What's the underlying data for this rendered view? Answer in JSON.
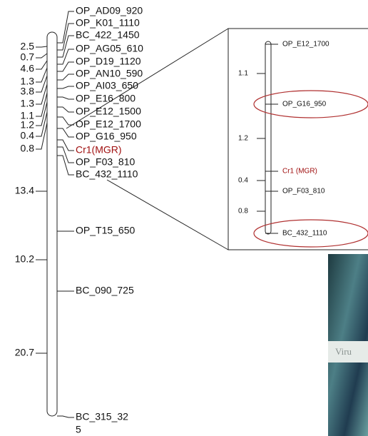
{
  "chromosome": {
    "markers": [
      {
        "label": "OP_AD09_920"
      },
      {
        "label": "OP_K01_1110"
      },
      {
        "label": "BC_422_1450"
      },
      {
        "label": "OP_AG05_610"
      },
      {
        "label": "OP_D19_1120"
      },
      {
        "label": "OP_AN10_590"
      },
      {
        "label": "OP_AI03_650"
      },
      {
        "label": "OP_E16_800"
      },
      {
        "label": "OP_E12_1500"
      },
      {
        "label": "OP_E12_1700"
      },
      {
        "label": "OP_G16_950"
      },
      {
        "label": "Cr1(MGR)",
        "highlight": true
      },
      {
        "label": "OP_F03_810"
      },
      {
        "label": "BC_432_1110"
      },
      {
        "label": "OP_T15_650"
      },
      {
        "label": "BC_090_725"
      },
      {
        "label": "BC_315_32",
        "label_wrap": "5"
      }
    ],
    "distances": [
      "2.5",
      "0.7",
      "4.6",
      "1.3",
      "3.8",
      "1.3",
      "1.1",
      "1.2",
      "0.4",
      "0.8",
      "13.4",
      "10.2",
      "20.7"
    ]
  },
  "inset": {
    "markers": [
      {
        "label": "OP_E12_1700"
      },
      {
        "label": "OP_G16_950",
        "circled": true
      },
      {
        "label": "Cr1 (MGR)",
        "highlight": true
      },
      {
        "label": "OP_F03_810"
      },
      {
        "label": "BC_432_1110",
        "circled": true
      }
    ],
    "distances": [
      "1.1",
      "1.2",
      "0.4",
      "0.8"
    ]
  },
  "photo": {
    "caption": "Viru"
  }
}
